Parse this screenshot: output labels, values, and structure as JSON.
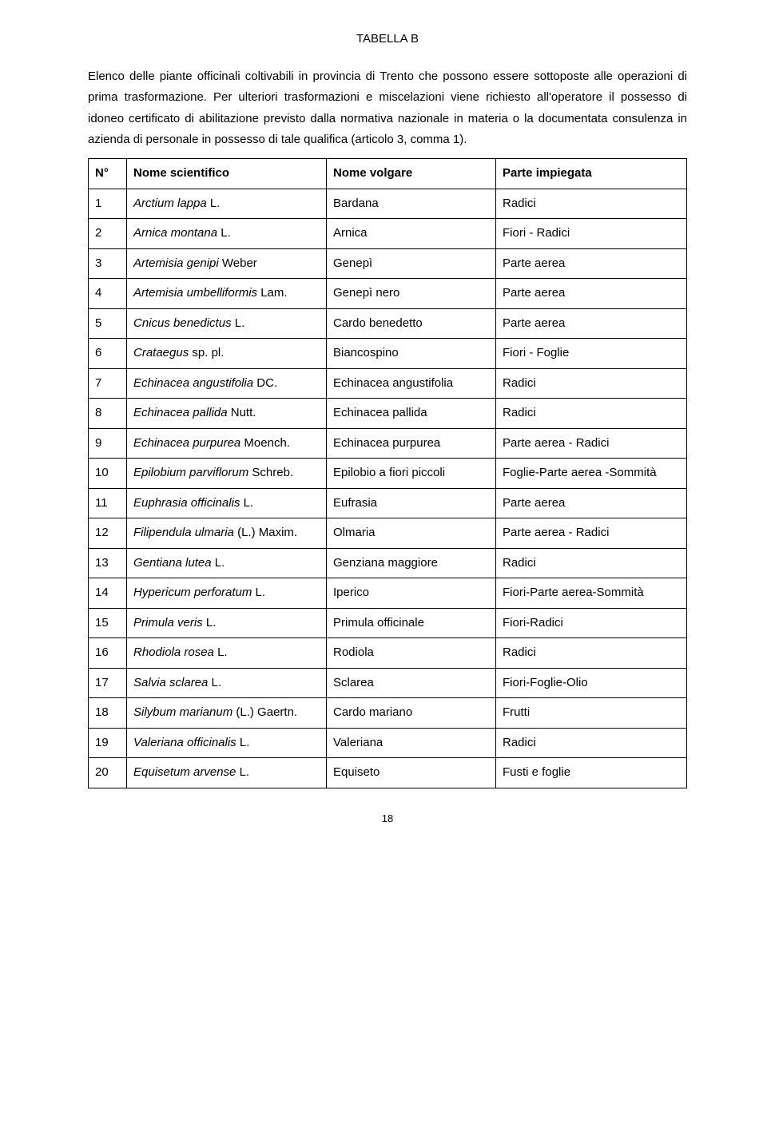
{
  "title": "TABELLA B",
  "intro": "Elenco delle piante officinali coltivabili in provincia di Trento che possono essere sottoposte alle operazioni di prima trasformazione.\nPer ulteriori trasformazioni e miscelazioni viene richiesto all'operatore il possesso di idoneo certificato di abilitazione previsto dalla normativa nazionale in materia o la documentata consulenza in azienda di personale in possesso di tale qualifica (articolo 3, comma 1).",
  "columns": [
    "N°",
    "Nome scientifico",
    "Nome volgare",
    "Parte impiegata"
  ],
  "rows": [
    {
      "n": "1",
      "sci": "Arctium lappa",
      "auth": " L.",
      "vul": "Bardana",
      "part": "Radici"
    },
    {
      "n": "2",
      "sci": "Arnica montana",
      "auth": " L.",
      "vul": "Arnica",
      "part": "Fiori - Radici"
    },
    {
      "n": "3",
      "sci": "Artemisia genipi",
      "auth": " Weber",
      "vul": "Genepì",
      "part": "Parte aerea"
    },
    {
      "n": "4",
      "sci": "Artemisia umbelliformis",
      "auth": " Lam.",
      "vul": "Genepì nero",
      "part": "Parte aerea"
    },
    {
      "n": "5",
      "sci": "Cnicus benedictus",
      "auth": " L.",
      "vul": "Cardo benedetto",
      "part": "Parte aerea"
    },
    {
      "n": "6",
      "sci": "Crataegus",
      "auth": " sp. pl.",
      "vul": "Biancospino",
      "part": "Fiori - Foglie"
    },
    {
      "n": "7",
      "sci": "Echinacea angustifolia",
      "auth": " DC.",
      "vul": "Echinacea angustifolia",
      "part": "Radici"
    },
    {
      "n": "8",
      "sci": "Echinacea pallida",
      "auth": "  Nutt.",
      "vul": "Echinacea pallida",
      "part": "Radici"
    },
    {
      "n": "9",
      "sci": "Echinacea purpurea",
      "auth": " Moench.",
      "vul": "Echinacea purpurea",
      "part": "Parte aerea - Radici"
    },
    {
      "n": "10",
      "sci": "Epilobium parviflorum",
      "auth": " Schreb.",
      "vul": "Epilobio a fiori piccoli",
      "part": "Foglie-Parte aerea -Sommità"
    },
    {
      "n": "11",
      "sci": "Euphrasia officinalis",
      "auth": " L.",
      "vul": "Eufrasia",
      "part": "Parte aerea"
    },
    {
      "n": "12",
      "sci": "Filipendula ulmaria",
      "auth": " (L.) Maxim.",
      "vul": "Olmaria",
      "part": "Parte aerea - Radici"
    },
    {
      "n": "13",
      "sci": "Gentiana lutea",
      "auth": " L.",
      "vul": "Genziana maggiore",
      "part": "Radici"
    },
    {
      "n": "14",
      "sci": "Hypericum perforatum",
      "auth": " L.",
      "vul": "Iperico",
      "part": "Fiori-Parte aerea-Sommità"
    },
    {
      "n": "15",
      "sci": "Primula veris",
      "auth": " L.",
      "vul": "Primula officinale",
      "part": "Fiori-Radici"
    },
    {
      "n": "16",
      "sci": "Rhodiola rosea",
      "auth": " L.",
      "vul": "Rodiola",
      "part": "Radici"
    },
    {
      "n": "17",
      "sci": "Salvia sclarea",
      "auth": " L.",
      "vul": "Sclarea",
      "part": "Fiori-Foglie-Olio"
    },
    {
      "n": "18",
      "sci": "Silybum marianum",
      "auth": " (L.) Gaertn.",
      "vul": "Cardo mariano",
      "part": "Frutti"
    },
    {
      "n": "19",
      "sci": "Valeriana officinalis",
      "auth": " L.",
      "vul": "Valeriana",
      "part": "Radici"
    },
    {
      "n": "20",
      "sci": "Equisetum arvense",
      "auth": " L.",
      "vul": "Equiseto",
      "part": "Fusti e foglie"
    }
  ],
  "pageNumber": "18"
}
